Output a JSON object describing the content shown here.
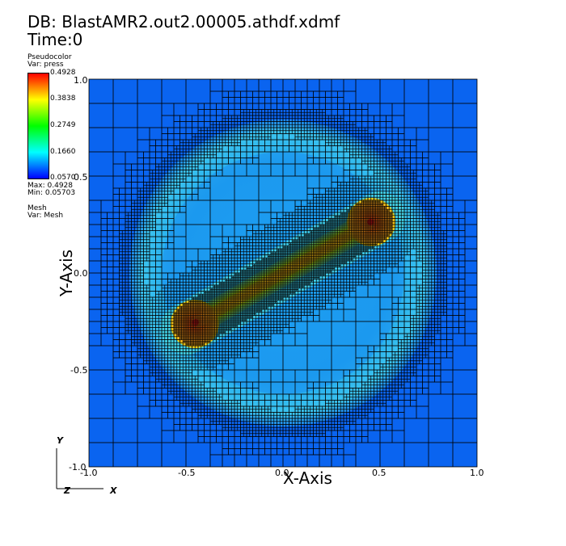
{
  "header": {
    "db_title": "DB: BlastAMR2.out2.00005.athdf.xdmf",
    "time_label": "Time:0"
  },
  "legend": {
    "pseudocolor_title": "Pseudocolor",
    "pseudocolor_var": "Var: press",
    "ticks": [
      "0.4928",
      "0.3838",
      "0.2749",
      "0.1660",
      "0.0570"
    ],
    "max_label": "Max: 0.4928",
    "min_label": "Min: 0.05703",
    "mesh_title": "Mesh",
    "mesh_var": "Var: Mesh"
  },
  "triad": {
    "y": "Y",
    "z": "Z",
    "x": "X"
  },
  "chart_data": {
    "type": "heatmap",
    "field": "press",
    "colormap": "hot-to-cold (red-yellow-green-cyan-blue)",
    "vmin": 0.05703,
    "vmax": 0.4928,
    "xlabel": "X-Axis",
    "ylabel": "Y-Axis",
    "xlim": [
      -1.0,
      1.0
    ],
    "ylim": [
      -1.0,
      1.0
    ],
    "xticks": [
      "-1.0",
      "-0.5",
      "0.0",
      "0.5",
      "1.0"
    ],
    "yticks": [
      "1.0",
      "0.5",
      "0.0",
      "-0.5",
      "-1.0"
    ],
    "features": {
      "background_pressure": 0.1,
      "shell": {
        "center": [
          0.0,
          0.0
        ],
        "radius": 0.78,
        "pressure": 0.17
      },
      "jet": {
        "start": [
          -0.45,
          -0.26
        ],
        "end": [
          0.45,
          0.26
        ],
        "half_width": 0.095,
        "pressure_core": 0.4928
      },
      "hot_spots": [
        [
          -0.45,
          -0.26
        ],
        [
          0.45,
          0.26
        ]
      ]
    },
    "mesh": "adaptive mesh refinement, finest cells along jet and shell"
  },
  "colors": {
    "background_field": "#0a64f0",
    "shell_field": "#1a9cf0",
    "jet_core": "#e95020"
  }
}
